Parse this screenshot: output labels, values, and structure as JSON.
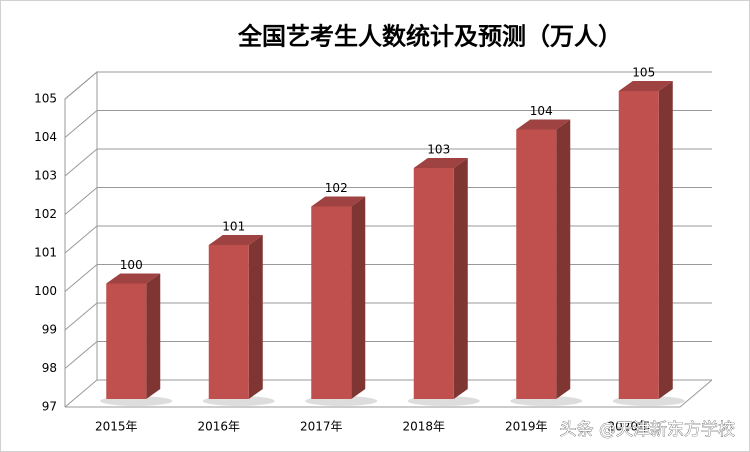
{
  "chart_data": {
    "type": "bar3d",
    "title": "全国艺考生人数统计及预测（万人）",
    "categories": [
      "2015年",
      "2016年",
      "2017年",
      "2018年",
      "2019年",
      "2020年"
    ],
    "values": [
      100,
      101,
      102,
      103,
      104,
      105
    ],
    "color": "#c0504d",
    "ylim": [
      97,
      105
    ],
    "yticks": [
      97,
      98,
      99,
      100,
      101,
      102,
      103,
      104,
      105
    ],
    "grid": true
  },
  "watermark": "头条 @天津新东方学校"
}
